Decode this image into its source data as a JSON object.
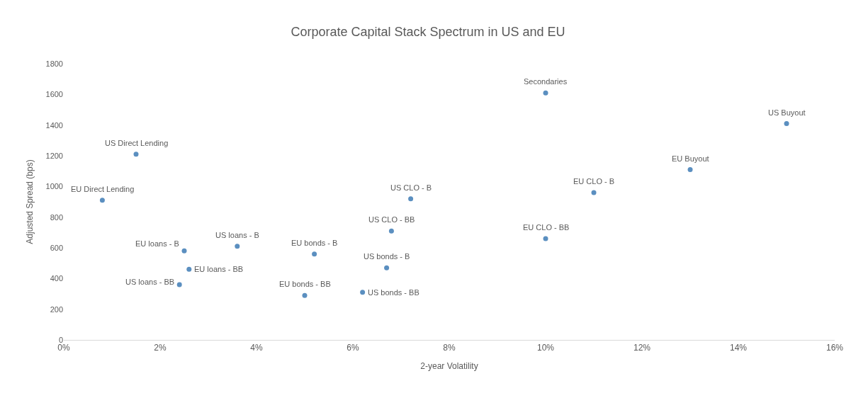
{
  "chart_data": {
    "type": "scatter",
    "title": "Corporate Capital Stack Spectrum in US and EU",
    "xlabel": "2-year Volatility",
    "ylabel": "Adjusted Spread (bps)",
    "x": [
      1.5,
      0.8,
      2.5,
      3.6,
      2.6,
      2.4,
      5.2,
      5.0,
      6.2,
      6.7,
      6.8,
      7.2,
      10.0,
      11.0,
      10.0,
      13.0,
      15.0
    ],
    "series": [
      {
        "color": "#5b8fc0",
        "values": [
          1210,
          910,
          580,
          610,
          460,
          360,
          560,
          290,
          310,
          470,
          710,
          920,
          660,
          960,
          1610,
          1110,
          1410
        ]
      }
    ],
    "annotations": [
      {
        "text": "US Direct Lending",
        "x": 1.5,
        "y": 1210
      },
      {
        "text": "EU Direct Lending",
        "x": 0.8,
        "y": 910
      },
      {
        "text": "EU loans - B",
        "x": 2.5,
        "y": 580
      },
      {
        "text": "US loans - B",
        "x": 3.6,
        "y": 610
      },
      {
        "text": "EU loans - BB",
        "x": 2.6,
        "y": 460
      },
      {
        "text": "US loans - BB",
        "x": 2.4,
        "y": 360
      },
      {
        "text": "EU bonds - B",
        "x": 5.2,
        "y": 560
      },
      {
        "text": "EU bonds - BB",
        "x": 5.0,
        "y": 290
      },
      {
        "text": "US bonds - BB",
        "x": 6.2,
        "y": 310
      },
      {
        "text": "US bonds - B",
        "x": 6.7,
        "y": 470
      },
      {
        "text": "US CLO - BB",
        "x": 6.8,
        "y": 710
      },
      {
        "text": "US CLO - B",
        "x": 7.2,
        "y": 920
      },
      {
        "text": "EU CLO - BB",
        "x": 10.0,
        "y": 660
      },
      {
        "text": "EU CLO - B",
        "x": 11.0,
        "y": 960
      },
      {
        "text": "Secondaries",
        "x": 10.0,
        "y": 1610
      },
      {
        "text": "EU Buyout",
        "x": 13.0,
        "y": 1110
      },
      {
        "text": "US Buyout",
        "x": 15.0,
        "y": 1410
      }
    ],
    "xlim": [
      0,
      16
    ],
    "xticks": [
      {
        "value": 0,
        "label": "0%"
      },
      {
        "value": 2,
        "label": "2%"
      },
      {
        "value": 4,
        "label": "4%"
      },
      {
        "value": 6,
        "label": "6%"
      },
      {
        "value": 8,
        "label": "8%"
      },
      {
        "value": 10,
        "label": "10%"
      },
      {
        "value": 12,
        "label": "12%"
      },
      {
        "value": 14,
        "label": "14%"
      },
      {
        "value": 16,
        "label": "16%"
      }
    ],
    "ylim": [
      0,
      1800
    ],
    "yticks": [
      0,
      200,
      400,
      600,
      800,
      1000,
      1200,
      1400,
      1600,
      1800
    ],
    "marker": "circle"
  }
}
